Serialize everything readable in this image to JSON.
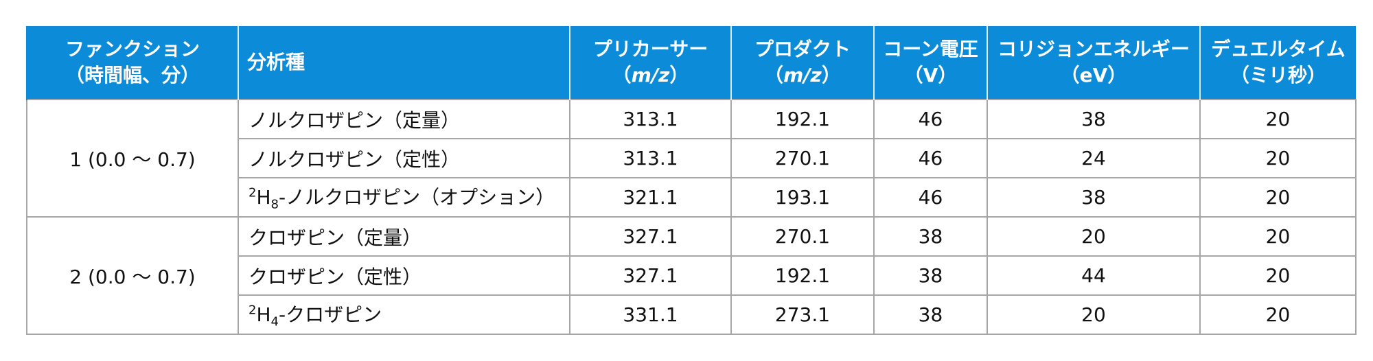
{
  "table": {
    "header": [
      {
        "lines": [
          "ファンクション",
          "（時間幅、分）"
        ]
      },
      {
        "lines": [
          "分析種"
        ]
      },
      {
        "lines": [
          "プリカーサー",
          [
            {
              "text": "（"
            },
            {
              "text": "m/z",
              "style": "italic"
            },
            {
              "text": "）"
            }
          ]
        ]
      },
      {
        "lines": [
          "プロダクト",
          [
            {
              "text": "（"
            },
            {
              "text": "m/z",
              "style": "italic"
            },
            {
              "text": "）"
            }
          ]
        ]
      },
      {
        "lines": [
          "コーン電圧",
          "（V）"
        ]
      },
      {
        "lines": [
          "コリジョンエネルギー",
          "（eV）"
        ]
      },
      {
        "lines": [
          "デュエルタイム",
          "（ミリ秒）"
        ]
      }
    ],
    "groups": [
      {
        "function": "1 (0.0 ～ 0.7)",
        "rows": [
          {
            "analyte": "ノルクロザピン（定量）",
            "values": [
              313.1,
              192.1,
              46,
              38,
              20
            ]
          },
          {
            "analyte": "ノルクロザピン（定性）",
            "values": [
              313.1,
              270.1,
              46,
              24,
              20
            ]
          },
          {
            "analyte": {
              "sup": "2",
              "base": "H",
              "sub": "8",
              "rest": "-ノルクロザピン（オプション）"
            },
            "values": [
              321.1,
              193.1,
              46,
              38,
              20
            ]
          }
        ]
      },
      {
        "function": "2 (0.0 ～ 0.7)",
        "rows": [
          {
            "analyte": "クロザピン（定量）",
            "values": [
              327.1,
              270.1,
              38,
              20,
              20
            ]
          },
          {
            "analyte": "クロザピン（定性）",
            "values": [
              327.1,
              192.1,
              38,
              44,
              20
            ]
          },
          {
            "analyte": {
              "sup": "2",
              "base": "H",
              "sub": "4",
              "rest": "-クロザピン"
            },
            "values": [
              331.1,
              273.1,
              38,
              20,
              20
            ]
          }
        ]
      }
    ]
  }
}
